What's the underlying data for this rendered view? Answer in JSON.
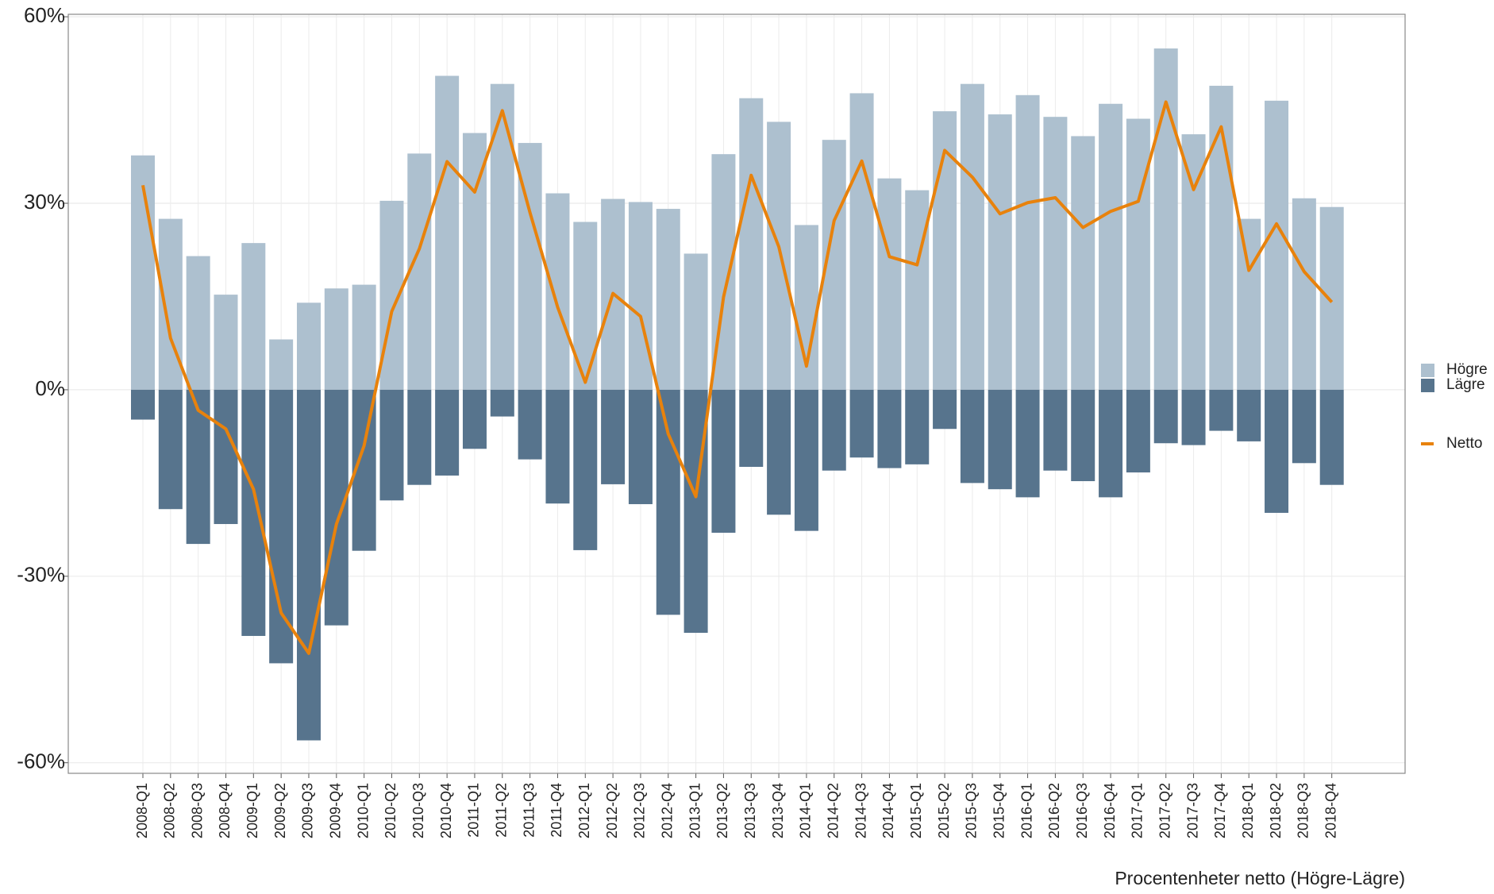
{
  "chart_data": {
    "type": "bar-line",
    "categories": [
      "2008-Q1",
      "2008-Q2",
      "2008-Q3",
      "2008-Q4",
      "2009-Q1",
      "2009-Q2",
      "2009-Q3",
      "2009-Q4",
      "2010-Q1",
      "2010-Q2",
      "2010-Q3",
      "2010-Q4",
      "2011-Q1",
      "2011-Q2",
      "2011-Q3",
      "2011-Q4",
      "2012-Q1",
      "2012-Q2",
      "2012-Q3",
      "2012-Q4",
      "2013-Q1",
      "2013-Q2",
      "2013-Q3",
      "2013-Q4",
      "2014-Q1",
      "2014-Q2",
      "2014-Q3",
      "2014-Q4",
      "2015-Q1",
      "2015-Q2",
      "2015-Q3",
      "2015-Q4",
      "2016-Q1",
      "2016-Q2",
      "2016-Q3",
      "2016-Q4",
      "2017-Q1",
      "2017-Q2",
      "2017-Q3",
      "2017-Q4",
      "2018-Q1",
      "2018-Q2",
      "2018-Q3",
      "2018-Q4"
    ],
    "series": [
      {
        "name": "Högre",
        "kind": "bar",
        "color": "#adc0cf",
        "values": [
          37.7,
          27.5,
          21.5,
          15.3,
          23.6,
          8.1,
          14.0,
          16.3,
          16.9,
          30.4,
          38.0,
          50.5,
          41.3,
          49.2,
          39.7,
          31.6,
          27.0,
          30.7,
          30.2,
          29.1,
          21.9,
          37.9,
          46.9,
          43.1,
          26.5,
          40.2,
          47.7,
          34.0,
          32.1,
          44.8,
          49.2,
          44.3,
          47.4,
          43.9,
          40.8,
          46.0,
          43.6,
          54.9,
          41.1,
          48.9,
          27.5,
          46.5,
          30.8,
          29.4
        ]
      },
      {
        "name": "Lägre",
        "kind": "bar",
        "color": "#57748d",
        "values": [
          -4.8,
          -19.2,
          -24.8,
          -21.6,
          -39.6,
          -44.0,
          -56.4,
          -37.9,
          -25.9,
          -17.8,
          -15.3,
          -13.8,
          -9.5,
          -4.3,
          -11.2,
          -18.3,
          -25.8,
          -15.2,
          -18.4,
          -36.2,
          -39.1,
          -23.0,
          -12.4,
          -20.1,
          -22.7,
          -13.0,
          -10.9,
          -12.6,
          -12.0,
          -6.3,
          -15.0,
          -16.0,
          -17.3,
          -13.0,
          -14.7,
          -17.3,
          -13.3,
          -8.6,
          -8.9,
          -6.6,
          -8.3,
          -19.8,
          -11.8,
          -15.3
        ]
      },
      {
        "name": "Netto",
        "kind": "line",
        "color": "#e8820c",
        "values": [
          32.9,
          8.3,
          -3.3,
          -6.3,
          -16.0,
          -35.9,
          -42.4,
          -21.6,
          -9.0,
          12.6,
          22.7,
          36.7,
          31.8,
          44.9,
          28.5,
          13.3,
          1.2,
          15.5,
          11.8,
          -7.1,
          -17.2,
          14.9,
          34.5,
          23.0,
          3.8,
          27.2,
          36.8,
          21.4,
          20.1,
          38.5,
          34.2,
          28.3,
          30.1,
          30.9,
          26.1,
          28.7,
          30.3,
          46.3,
          32.2,
          42.3,
          19.2,
          26.7,
          19.0,
          14.1
        ]
      }
    ],
    "ylim": [
      -61.7,
      60.4
    ],
    "yticks": [
      {
        "value": -60,
        "label": "-60%"
      },
      {
        "value": -30,
        "label": "-30%"
      },
      {
        "value": 0,
        "label": "0%"
      },
      {
        "value": 30,
        "label": "30%"
      },
      {
        "value": 60,
        "label": "60%"
      }
    ],
    "grid": true,
    "legend": "right",
    "caption": "Procentenheter netto (Högre-Lägre)"
  }
}
